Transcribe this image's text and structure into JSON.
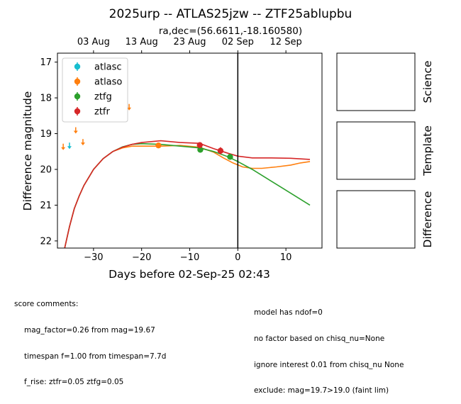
{
  "chart_data": {
    "type": "scatter",
    "title": "2025urp -- ATLAS25jzw -- ZTF25ablupbu",
    "subtitle": "ra,dec=(56.6611,-18.160580)",
    "xlabel": "Days before 02-Sep-25 02:43",
    "ylabel": "Difference magnitude",
    "xlim": [
      -37.5,
      17.5
    ],
    "ylim": [
      22.2,
      16.75
    ],
    "y_inverted": true,
    "xticks": [
      -30,
      -20,
      -10,
      0,
      10
    ],
    "yticks": [
      17,
      18,
      19,
      20,
      21,
      22
    ],
    "top_axis_ticks": [
      {
        "label": "03 Aug",
        "x": -30
      },
      {
        "label": "13 Aug",
        "x": -20
      },
      {
        "label": "23 Aug",
        "x": -10
      },
      {
        "label": "02 Sep",
        "x": 0
      },
      {
        "label": "12 Sep",
        "x": 10
      }
    ],
    "vline_x": 0,
    "legend_position": "upper-left",
    "series": [
      {
        "name": "atlasc",
        "color": "#17becf",
        "points": [],
        "upper_limits": [
          {
            "x": -35.0,
            "y": 19.35
          }
        ]
      },
      {
        "name": "atlaso",
        "color": "#ff7f0e",
        "points": [
          {
            "x": -16.5,
            "y": 19.33,
            "err": 0.04
          }
        ],
        "upper_limits": [
          {
            "x": -36.3,
            "y": 19.38
          },
          {
            "x": -33.7,
            "y": 18.92
          },
          {
            "x": -32.2,
            "y": 19.25
          },
          {
            "x": -22.6,
            "y": 18.27
          }
        ],
        "model": [
          {
            "x": -36,
            "y": 22.2
          },
          {
            "x": -35,
            "y": 21.6
          },
          {
            "x": -34,
            "y": 21.1
          },
          {
            "x": -33,
            "y": 20.75
          },
          {
            "x": -32,
            "y": 20.45
          },
          {
            "x": -30,
            "y": 20.0
          },
          {
            "x": -28,
            "y": 19.7
          },
          {
            "x": -26,
            "y": 19.5
          },
          {
            "x": -24,
            "y": 19.4
          },
          {
            "x": -22,
            "y": 19.35
          },
          {
            "x": -20,
            "y": 19.35
          },
          {
            "x": -16,
            "y": 19.35
          },
          {
            "x": -12,
            "y": 19.33
          },
          {
            "x": -8,
            "y": 19.38
          },
          {
            "x": -5,
            "y": 19.52
          },
          {
            "x": -3,
            "y": 19.68
          },
          {
            "x": -1,
            "y": 19.82
          },
          {
            "x": 1,
            "y": 19.93
          },
          {
            "x": 3,
            "y": 19.97
          },
          {
            "x": 5,
            "y": 19.97
          },
          {
            "x": 8,
            "y": 19.93
          },
          {
            "x": 11,
            "y": 19.88
          },
          {
            "x": 13,
            "y": 19.82
          },
          {
            "x": 15,
            "y": 19.78
          }
        ]
      },
      {
        "name": "ztfg",
        "color": "#2ca02c",
        "points": [
          {
            "x": -7.8,
            "y": 19.45,
            "err": 0.08
          },
          {
            "x": -1.6,
            "y": 19.65,
            "err": 0.07
          }
        ],
        "upper_limits": [],
        "model": [
          {
            "x": -36,
            "y": 22.2
          },
          {
            "x": -35,
            "y": 21.6
          },
          {
            "x": -34,
            "y": 21.1
          },
          {
            "x": -33,
            "y": 20.75
          },
          {
            "x": -32,
            "y": 20.45
          },
          {
            "x": -30,
            "y": 20.0
          },
          {
            "x": -28,
            "y": 19.7
          },
          {
            "x": -26,
            "y": 19.5
          },
          {
            "x": -24,
            "y": 19.37
          },
          {
            "x": -22,
            "y": 19.3
          },
          {
            "x": -20,
            "y": 19.28
          },
          {
            "x": -16,
            "y": 19.3
          },
          {
            "x": -12,
            "y": 19.35
          },
          {
            "x": -8,
            "y": 19.4
          },
          {
            "x": -5,
            "y": 19.5
          },
          {
            "x": -2,
            "y": 19.65
          },
          {
            "x": 0,
            "y": 19.78
          },
          {
            "x": 3,
            "y": 20.0
          },
          {
            "x": 6,
            "y": 20.25
          },
          {
            "x": 9,
            "y": 20.5
          },
          {
            "x": 12,
            "y": 20.75
          },
          {
            "x": 15,
            "y": 21.0
          }
        ]
      },
      {
        "name": "ztfr",
        "color": "#d62728",
        "points": [
          {
            "x": -7.9,
            "y": 19.32,
            "err": 0.08
          },
          {
            "x": -3.6,
            "y": 19.48,
            "err": 0.1
          }
        ],
        "upper_limits": [],
        "model": [
          {
            "x": -36,
            "y": 22.2
          },
          {
            "x": -35,
            "y": 21.6
          },
          {
            "x": -34,
            "y": 21.1
          },
          {
            "x": -33,
            "y": 20.75
          },
          {
            "x": -32,
            "y": 20.45
          },
          {
            "x": -30,
            "y": 20.0
          },
          {
            "x": -28,
            "y": 19.7
          },
          {
            "x": -26,
            "y": 19.5
          },
          {
            "x": -24,
            "y": 19.38
          },
          {
            "x": -22,
            "y": 19.3
          },
          {
            "x": -20,
            "y": 19.25
          },
          {
            "x": -16,
            "y": 19.2
          },
          {
            "x": -12,
            "y": 19.25
          },
          {
            "x": -8,
            "y": 19.27
          },
          {
            "x": -5,
            "y": 19.42
          },
          {
            "x": -2,
            "y": 19.55
          },
          {
            "x": 0,
            "y": 19.63
          },
          {
            "x": 3,
            "y": 19.68
          },
          {
            "x": 7,
            "y": 19.68
          },
          {
            "x": 11,
            "y": 19.69
          },
          {
            "x": 15,
            "y": 19.72
          }
        ]
      }
    ]
  },
  "stamp_panels": [
    {
      "label": "Science"
    },
    {
      "label": "Template"
    },
    {
      "label": "Difference"
    }
  ],
  "score_comments": {
    "heading": "score comments:",
    "left_lines": [
      "mag_factor=0.26 from mag=19.67",
      "timespan f=1.00 from timespan=7.7d",
      "f_rise: ztfr=0.05 ztfg=0.05"
    ],
    "right_lines": [
      "model has ndof=0",
      "no factor based on chisq_nu=None",
      "ignore interest 0.01 from chisq_nu None",
      "exclude: mag=19.7>19.0 (faint lim)"
    ]
  }
}
